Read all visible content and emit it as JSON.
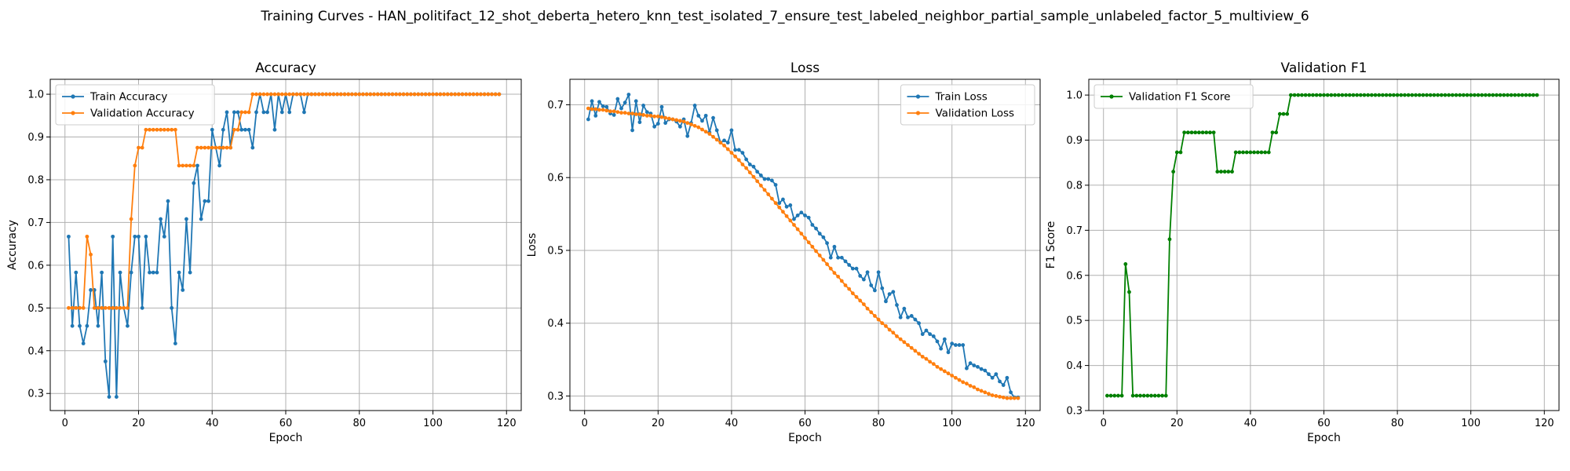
{
  "figure": {
    "suptitle": "Training Curves - HAN_politifact_12_shot_deberta_hetero_knn_test_isolated_7_ensure_test_labeled_neighbor_partial_sample_unlabeled_factor_5_multiview_6"
  },
  "chart_data": [
    {
      "type": "line",
      "title": "Accuracy",
      "xlabel": "Epoch",
      "ylabel": "Accuracy",
      "xlim": [
        -4,
        124
      ],
      "ylim": [
        0.26,
        1.035
      ],
      "xticks": [
        0,
        20,
        40,
        60,
        80,
        100,
        120
      ],
      "yticks": [
        0.3,
        0.4,
        0.5,
        0.6,
        0.7,
        0.8,
        0.9,
        1.0
      ],
      "ytick_labels": [
        "0.3",
        "0.4",
        "0.5",
        "0.6",
        "0.7",
        "0.8",
        "0.9",
        "1.0"
      ],
      "grid": true,
      "legend": "upper-left",
      "series": [
        {
          "name": "Train Accuracy",
          "color": "#1f77b4",
          "x_start": 1,
          "values": [
            0.667,
            0.458,
            0.583,
            0.458,
            0.417,
            0.458,
            0.542,
            0.542,
            0.458,
            0.583,
            0.375,
            0.292,
            0.667,
            0.292,
            0.583,
            0.5,
            0.458,
            0.583,
            0.667,
            0.667,
            0.5,
            0.667,
            0.583,
            0.583,
            0.583,
            0.708,
            0.667,
            0.75,
            0.5,
            0.417,
            0.583,
            0.542,
            0.708,
            0.583,
            0.792,
            0.833,
            0.708,
            0.75,
            0.75,
            0.917,
            0.875,
            0.833,
            0.917,
            0.958,
            0.875,
            0.958,
            0.958,
            0.917,
            0.917,
            0.917,
            0.875,
            0.958,
            1.0,
            0.958,
            0.958,
            1.0,
            0.917,
            1.0,
            0.958,
            1.0,
            0.958,
            1.0,
            1.0,
            1.0,
            0.958,
            1.0,
            1.0,
            1.0,
            1.0,
            1.0,
            1.0,
            1.0,
            1.0,
            1.0,
            1.0,
            1.0,
            1.0,
            1.0,
            1.0,
            1.0,
            1.0,
            1.0,
            1.0,
            1.0,
            1.0,
            1.0,
            1.0,
            1.0,
            1.0,
            1.0,
            1.0,
            1.0,
            1.0,
            1.0,
            1.0,
            1.0,
            1.0,
            1.0,
            1.0,
            1.0,
            1.0,
            1.0,
            1.0,
            1.0,
            1.0,
            1.0,
            1.0,
            1.0,
            1.0,
            1.0,
            1.0,
            1.0,
            1.0,
            1.0,
            1.0,
            1.0,
            1.0,
            1.0
          ]
        },
        {
          "name": "Validation Accuracy",
          "color": "#ff7f0e",
          "x_start": 1,
          "values": [
            0.5,
            0.5,
            0.5,
            0.5,
            0.5,
            0.667,
            0.625,
            0.5,
            0.5,
            0.5,
            0.5,
            0.5,
            0.5,
            0.5,
            0.5,
            0.5,
            0.5,
            0.708,
            0.833,
            0.875,
            0.875,
            0.917,
            0.917,
            0.917,
            0.917,
            0.917,
            0.917,
            0.917,
            0.917,
            0.917,
            0.833,
            0.833,
            0.833,
            0.833,
            0.833,
            0.875,
            0.875,
            0.875,
            0.875,
            0.875,
            0.875,
            0.875,
            0.875,
            0.875,
            0.875,
            0.917,
            0.917,
            0.958,
            0.958,
            0.958,
            1.0,
            1.0,
            1.0,
            1.0,
            1.0,
            1.0,
            1.0,
            1.0,
            1.0,
            1.0,
            1.0,
            1.0,
            1.0,
            1.0,
            1.0,
            1.0,
            1.0,
            1.0,
            1.0,
            1.0,
            1.0,
            1.0,
            1.0,
            1.0,
            1.0,
            1.0,
            1.0,
            1.0,
            1.0,
            1.0,
            1.0,
            1.0,
            1.0,
            1.0,
            1.0,
            1.0,
            1.0,
            1.0,
            1.0,
            1.0,
            1.0,
            1.0,
            1.0,
            1.0,
            1.0,
            1.0,
            1.0,
            1.0,
            1.0,
            1.0,
            1.0,
            1.0,
            1.0,
            1.0,
            1.0,
            1.0,
            1.0,
            1.0,
            1.0,
            1.0,
            1.0,
            1.0,
            1.0,
            1.0,
            1.0,
            1.0,
            1.0,
            1.0
          ]
        }
      ]
    },
    {
      "type": "line",
      "title": "Loss",
      "xlabel": "Epoch",
      "ylabel": "Loss",
      "xlim": [
        -4,
        124
      ],
      "ylim": [
        0.28,
        0.735
      ],
      "xticks": [
        0,
        20,
        40,
        60,
        80,
        100,
        120
      ],
      "yticks": [
        0.3,
        0.4,
        0.5,
        0.6,
        0.7
      ],
      "ytick_labels": [
        "0.3",
        "0.4",
        "0.5",
        "0.6",
        "0.7"
      ],
      "grid": true,
      "legend": "upper-right",
      "series": [
        {
          "name": "Train Loss",
          "color": "#1f77b4",
          "x_start": 1,
          "values": [
            0.68,
            0.705,
            0.685,
            0.704,
            0.698,
            0.697,
            0.688,
            0.686,
            0.708,
            0.695,
            0.703,
            0.714,
            0.665,
            0.705,
            0.676,
            0.699,
            0.69,
            0.688,
            0.67,
            0.674,
            0.697,
            0.675,
            0.68,
            0.68,
            0.677,
            0.67,
            0.68,
            0.657,
            0.675,
            0.699,
            0.685,
            0.678,
            0.685,
            0.662,
            0.682,
            0.665,
            0.648,
            0.651,
            0.648,
            0.665,
            0.638,
            0.638,
            0.634,
            0.625,
            0.618,
            0.615,
            0.608,
            0.603,
            0.598,
            0.598,
            0.596,
            0.59,
            0.565,
            0.57,
            0.56,
            0.562,
            0.543,
            0.548,
            0.552,
            0.548,
            0.545,
            0.535,
            0.53,
            0.523,
            0.518,
            0.51,
            0.49,
            0.505,
            0.49,
            0.49,
            0.485,
            0.48,
            0.475,
            0.475,
            0.465,
            0.46,
            0.47,
            0.452,
            0.445,
            0.47,
            0.448,
            0.43,
            0.44,
            0.443,
            0.425,
            0.408,
            0.42,
            0.408,
            0.41,
            0.405,
            0.4,
            0.385,
            0.39,
            0.385,
            0.382,
            0.375,
            0.365,
            0.378,
            0.36,
            0.372,
            0.37,
            0.37,
            0.37,
            0.338,
            0.345,
            0.342,
            0.34,
            0.337,
            0.335,
            0.33,
            0.325,
            0.33,
            0.32,
            0.315,
            0.325,
            0.305,
            0.298,
            0.298
          ]
        },
        {
          "name": "Validation Loss",
          "color": "#ff7f0e",
          "x_start": 1,
          "values": [
            0.695,
            0.694,
            0.694,
            0.693,
            0.693,
            0.692,
            0.691,
            0.691,
            0.69,
            0.689,
            0.689,
            0.688,
            0.688,
            0.687,
            0.687,
            0.686,
            0.685,
            0.685,
            0.684,
            0.684,
            0.683,
            0.682,
            0.681,
            0.68,
            0.679,
            0.678,
            0.677,
            0.675,
            0.673,
            0.671,
            0.669,
            0.666,
            0.663,
            0.66,
            0.656,
            0.652,
            0.648,
            0.644,
            0.639,
            0.634,
            0.629,
            0.624,
            0.618,
            0.613,
            0.607,
            0.601,
            0.595,
            0.589,
            0.583,
            0.577,
            0.571,
            0.565,
            0.559,
            0.553,
            0.547,
            0.541,
            0.535,
            0.529,
            0.523,
            0.517,
            0.511,
            0.505,
            0.499,
            0.493,
            0.487,
            0.481,
            0.475,
            0.469,
            0.464,
            0.458,
            0.452,
            0.447,
            0.441,
            0.436,
            0.431,
            0.426,
            0.42,
            0.415,
            0.41,
            0.405,
            0.4,
            0.396,
            0.391,
            0.387,
            0.382,
            0.378,
            0.374,
            0.37,
            0.366,
            0.362,
            0.358,
            0.354,
            0.351,
            0.347,
            0.344,
            0.34,
            0.337,
            0.334,
            0.331,
            0.328,
            0.325,
            0.322,
            0.319,
            0.317,
            0.314,
            0.312,
            0.309,
            0.307,
            0.305,
            0.303,
            0.301,
            0.3,
            0.299,
            0.298,
            0.297,
            0.297,
            0.297,
            0.297
          ]
        }
      ]
    },
    {
      "type": "line",
      "title": "Validation F1",
      "xlabel": "Epoch",
      "ylabel": "F1 Score",
      "xlim": [
        -4,
        124
      ],
      "ylim": [
        0.3,
        1.035
      ],
      "xticks": [
        0,
        20,
        40,
        60,
        80,
        100,
        120
      ],
      "yticks": [
        0.3,
        0.4,
        0.5,
        0.6,
        0.7,
        0.8,
        0.9,
        1.0
      ],
      "ytick_labels": [
        "0.3",
        "0.4",
        "0.5",
        "0.6",
        "0.7",
        "0.8",
        "0.9",
        "1.0"
      ],
      "grid": true,
      "legend": "upper-left",
      "series": [
        {
          "name": "Validation F1 Score",
          "color": "#008000",
          "x_start": 1,
          "values": [
            0.333,
            0.333,
            0.333,
            0.333,
            0.333,
            0.625,
            0.563,
            0.333,
            0.333,
            0.333,
            0.333,
            0.333,
            0.333,
            0.333,
            0.333,
            0.333,
            0.333,
            0.68,
            0.83,
            0.873,
            0.873,
            0.917,
            0.917,
            0.917,
            0.917,
            0.917,
            0.917,
            0.917,
            0.917,
            0.917,
            0.83,
            0.83,
            0.83,
            0.83,
            0.83,
            0.873,
            0.873,
            0.873,
            0.873,
            0.873,
            0.873,
            0.873,
            0.873,
            0.873,
            0.873,
            0.917,
            0.917,
            0.958,
            0.958,
            0.958,
            1.0,
            1.0,
            1.0,
            1.0,
            1.0,
            1.0,
            1.0,
            1.0,
            1.0,
            1.0,
            1.0,
            1.0,
            1.0,
            1.0,
            1.0,
            1.0,
            1.0,
            1.0,
            1.0,
            1.0,
            1.0,
            1.0,
            1.0,
            1.0,
            1.0,
            1.0,
            1.0,
            1.0,
            1.0,
            1.0,
            1.0,
            1.0,
            1.0,
            1.0,
            1.0,
            1.0,
            1.0,
            1.0,
            1.0,
            1.0,
            1.0,
            1.0,
            1.0,
            1.0,
            1.0,
            1.0,
            1.0,
            1.0,
            1.0,
            1.0,
            1.0,
            1.0,
            1.0,
            1.0,
            1.0,
            1.0,
            1.0,
            1.0,
            1.0,
            1.0,
            1.0,
            1.0,
            1.0,
            1.0,
            1.0,
            1.0,
            1.0,
            1.0
          ]
        }
      ]
    }
  ]
}
